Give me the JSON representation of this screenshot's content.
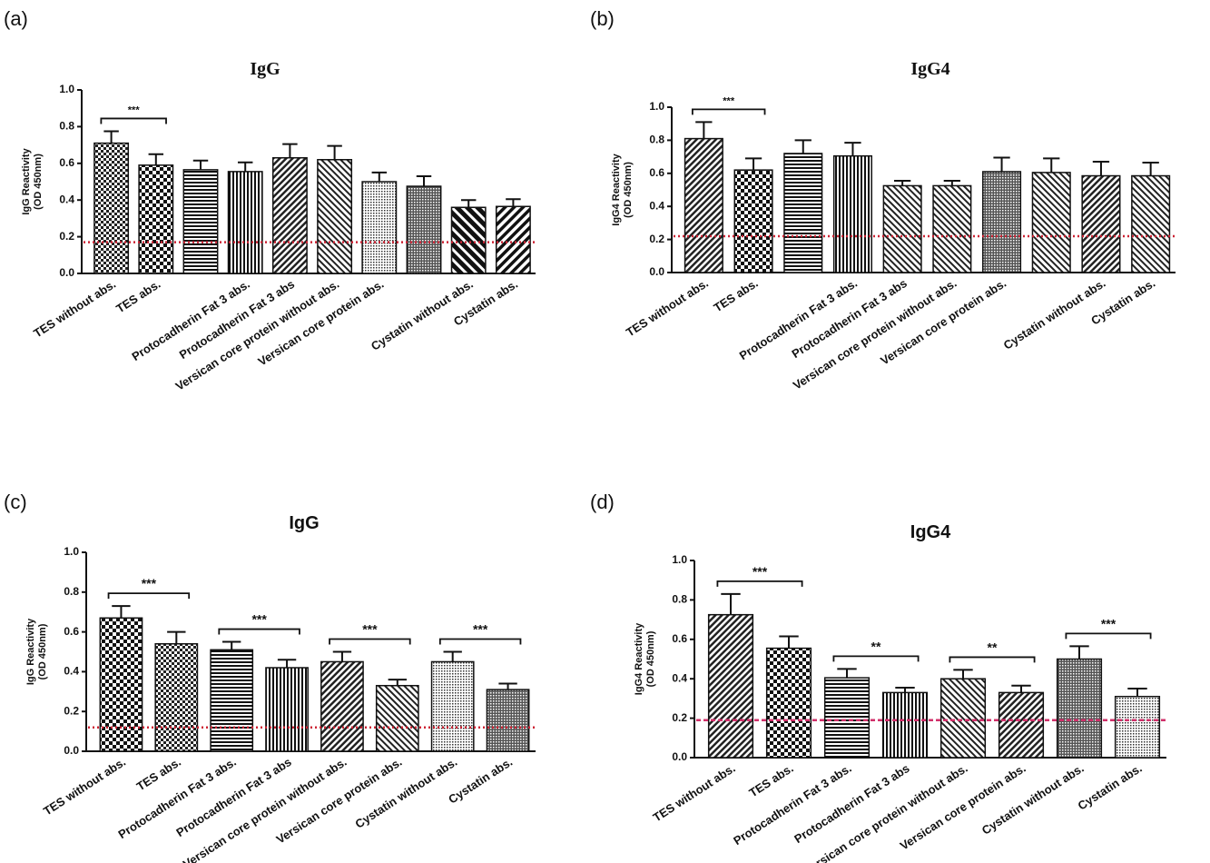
{
  "chart_data": [
    {
      "type": "bar",
      "panel": "(a)",
      "title": "IgG",
      "y_label": [
        "IgG Reactivity",
        "(OD 450nm)"
      ],
      "categories": [
        "TES without  abs.",
        "TES abs.",
        null,
        "Protocadherin Fat 3 abs.",
        "Protocadherin Fat 3 abs",
        "Versican core protein without  abs.",
        "Versican core protein abs.",
        null,
        "Cystatin without  abs.",
        "Cystatin abs."
      ],
      "values": [
        0.71,
        0.59,
        0.565,
        0.555,
        0.63,
        0.62,
        0.5,
        0.475,
        0.36,
        0.365
      ],
      "errors": [
        0.065,
        0.06,
        0.05,
        0.05,
        0.075,
        0.075,
        0.05,
        0.055,
        0.04,
        0.04
      ],
      "color": "#111111",
      "cutoff": 0.17,
      "cutoff_color": "#cc2233",
      "brackets": [
        {
          "from": 0,
          "to": 1,
          "label": "***"
        }
      ],
      "ylim": [
        0,
        1.0
      ],
      "yticks": [
        {
          "value": 0,
          "label": "0.0"
        },
        {
          "value": 0.2,
          "label": "0.2"
        },
        {
          "value": 0.4,
          "label": "0.4"
        },
        {
          "value": 0.6,
          "label": "0.6"
        },
        {
          "value": 0.8,
          "label": "0.8"
        },
        {
          "value": 1.0,
          "label": "1.0"
        }
      ]
    },
    {
      "type": "bar",
      "panel": "(b)",
      "title": "IgG4",
      "y_label": [
        "IgG4 Reactivity",
        "(OD 450nm)"
      ],
      "categories": [
        "TES  without  abs.",
        "TES abs.",
        null,
        "Protocadherin Fat 3 abs.",
        "Protocadherin Fat 3 abs",
        "Versican core protein without  abs.",
        "Versican core protein abs.",
        null,
        "Cystatin without  abs.",
        "Cystatin abs."
      ],
      "values": [
        0.81,
        0.62,
        0.72,
        0.705,
        0.525,
        0.525,
        0.61,
        0.605,
        0.585,
        0.585
      ],
      "errors": [
        0.1,
        0.07,
        0.08,
        0.08,
        0.03,
        0.03,
        0.085,
        0.085,
        0.085,
        0.08
      ],
      "color": "#111111",
      "cutoff": 0.22,
      "cutoff_color": "#cc2233",
      "brackets": [
        {
          "from": 0,
          "to": 1,
          "label": "***"
        }
      ],
      "ylim": [
        0,
        1.0
      ],
      "yticks": [
        {
          "value": 0,
          "label": "0.0"
        },
        {
          "value": 0.2,
          "label": "0.2"
        },
        {
          "value": 0.4,
          "label": "0.4"
        },
        {
          "value": 0.6,
          "label": "0.6"
        },
        {
          "value": 0.8,
          "label": "0.8"
        },
        {
          "value": 1.0,
          "label": "1.0"
        }
      ]
    },
    {
      "type": "bar",
      "panel": "(c)",
      "title": "IgG",
      "y_label": [
        "IgG Reactivity",
        "(OD 450nm)"
      ],
      "categories": [
        "TES  without  abs.",
        "TES abs.",
        "Protocadherin Fat 3 abs.",
        "Protocadherin Fat 3 abs",
        "Versican core protein without  abs.",
        "Versican core protein abs.",
        "Cystatin without  abs.",
        "Cystatin abs."
      ],
      "values": [
        0.67,
        0.54,
        0.51,
        0.42,
        0.45,
        0.33,
        0.45,
        0.31
      ],
      "errors": [
        0.06,
        0.06,
        0.04,
        0.04,
        0.05,
        0.03,
        0.05,
        0.03
      ],
      "color": "#111111",
      "cutoff": 0.12,
      "cutoff_color": "#cc2233",
      "brackets": [
        {
          "from": 0,
          "to": 1,
          "label": "***"
        },
        {
          "from": 2,
          "to": 3,
          "label": "***"
        },
        {
          "from": 4,
          "to": 5,
          "label": "***"
        },
        {
          "from": 6,
          "to": 7,
          "label": "***"
        }
      ],
      "ylim": [
        0,
        1.0
      ],
      "yticks": [
        {
          "value": 0,
          "label": "0.0"
        },
        {
          "value": 0.2,
          "label": "0.2"
        },
        {
          "value": 0.4,
          "label": "0.4"
        },
        {
          "value": 0.6,
          "label": "0.6"
        },
        {
          "value": 0.8,
          "label": "0.8"
        },
        {
          "value": 1.0,
          "label": "1.0"
        }
      ]
    },
    {
      "type": "bar",
      "panel": "(d)",
      "title": "IgG4",
      "y_label": [
        "IgG4 Reactivity",
        "(OD 450nm)"
      ],
      "categories": [
        "TES  without  abs.",
        "TES abs.",
        "Protocadherin Fat 3 abs.",
        "Protocadherin Fat 3 abs",
        "Versican core protein without  abs.",
        "Versican core protein abs.",
        "Cystatin without  abs.",
        "Cystatin abs."
      ],
      "values": [
        0.725,
        0.555,
        0.405,
        0.33,
        0.4,
        0.33,
        0.5,
        0.31
      ],
      "errors": [
        0.105,
        0.06,
        0.045,
        0.025,
        0.045,
        0.035,
        0.065,
        0.04
      ],
      "color": "#111111",
      "cutoff": 0.19,
      "cutoff_color": "#d0306a",
      "brackets": [
        {
          "from": 0,
          "to": 1,
          "label": "***"
        },
        {
          "from": 2,
          "to": 3,
          "label": "**"
        },
        {
          "from": 4,
          "to": 5,
          "label": "**"
        },
        {
          "from": 6,
          "to": 7,
          "label": "***"
        }
      ],
      "ylim": [
        0,
        1.0
      ],
      "yticks": [
        {
          "value": 0,
          "label": "0.0"
        },
        {
          "value": 0.2,
          "label": "0.2"
        },
        {
          "value": 0.4,
          "label": "0.4"
        },
        {
          "value": 0.6,
          "label": "0.6"
        },
        {
          "value": 0.8,
          "label": "0.8"
        },
        {
          "value": 1.0,
          "label": "1.0"
        }
      ]
    }
  ]
}
